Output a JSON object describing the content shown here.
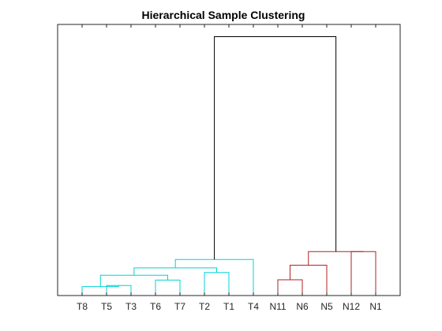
{
  "chart_data": {
    "type": "dendrogram",
    "title": "Hierarchical Sample Clustering",
    "xlabel": "",
    "ylabel": "",
    "leaves": [
      "T8",
      "T5",
      "T3",
      "T6",
      "T7",
      "T2",
      "T1",
      "T4",
      "N11",
      "N6",
      "N5",
      "N12",
      "N1"
    ],
    "ylim": [
      0,
      1.0
    ],
    "grid": false,
    "y_ticks_shown": false,
    "colors": {
      "cyan": "#00d4d4",
      "red": "#b22222",
      "black": "#000000",
      "axis": "#262626"
    },
    "links": [
      {
        "left": "T5",
        "right": "T3",
        "height": 0.037,
        "color": "cyan"
      },
      {
        "left": "T8",
        "right": "T5,T3",
        "height": 0.033,
        "color": "cyan"
      },
      {
        "left": "T6",
        "right": "T7",
        "height": 0.057,
        "color": "cyan"
      },
      {
        "left": "T8,T5,T3",
        "right": "T6,T7",
        "height": 0.075,
        "color": "cyan"
      },
      {
        "left": "T2",
        "right": "T1",
        "height": 0.085,
        "color": "cyan"
      },
      {
        "left": "T8,T5,T3,T6,T7",
        "right": "T2,T1",
        "height": 0.102,
        "color": "cyan"
      },
      {
        "left": "T8,T5,T3,T6,T7,T2,T1",
        "right": "T4",
        "height": 0.133,
        "color": "cyan"
      },
      {
        "left": "N11",
        "right": "N6",
        "height": 0.058,
        "color": "red"
      },
      {
        "left": "N11,N6",
        "right": "N5",
        "height": 0.112,
        "color": "red"
      },
      {
        "left": "N12",
        "right": "N1",
        "height": 0.162,
        "color": "red"
      },
      {
        "left": "N11,N6,N5",
        "right": "N12,N1",
        "height": 0.162,
        "color": "red"
      },
      {
        "left": "T-cluster",
        "right": "N-cluster",
        "height": 0.955,
        "color": "black"
      }
    ]
  }
}
